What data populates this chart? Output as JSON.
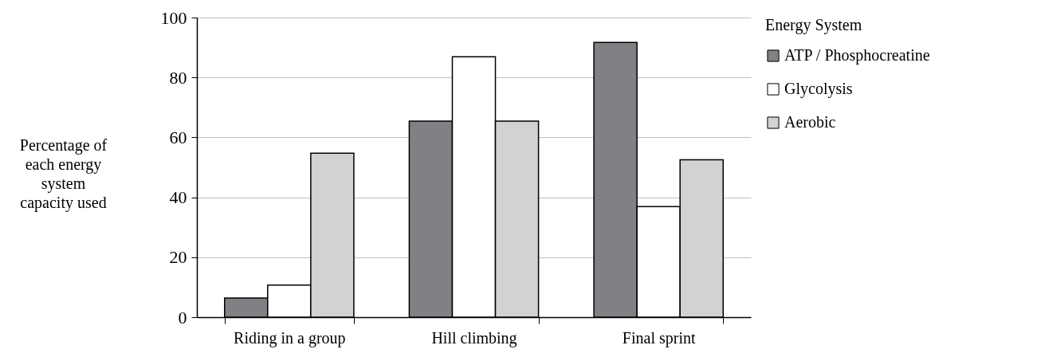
{
  "chart_data": {
    "type": "bar",
    "ylabel": "Percentage of each energy system capacity used",
    "legend_title": "Energy System",
    "categories": [
      "Riding in a group",
      "Hill climbing",
      "Final sprint"
    ],
    "series": [
      {
        "name": "ATP / Phosphocreatine",
        "color": "#808184",
        "values": [
          6.4,
          65.4,
          91.7
        ]
      },
      {
        "name": "Glycolysis",
        "color": "#ffffff",
        "values": [
          10.7,
          86.9,
          36.9
        ]
      },
      {
        "name": "Aerobic",
        "color": "#d1d2d4",
        "values": [
          54.7,
          65.4,
          52.5
        ]
      }
    ],
    "ylim": [
      0,
      100
    ],
    "yticks": [
      0,
      20,
      40,
      60,
      80,
      100
    ],
    "grid": "y",
    "legend": "top right"
  }
}
